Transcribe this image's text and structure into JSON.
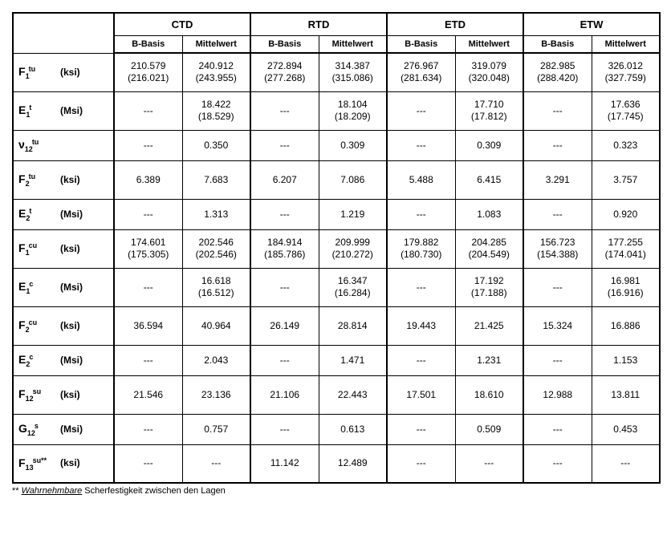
{
  "columns": {
    "groups": [
      "CTD",
      "RTD",
      "ETD",
      "ETW"
    ],
    "subs": [
      "B-Basis",
      "Mittelwert"
    ]
  },
  "rows": [
    {
      "base": "F",
      "sub": "1",
      "sup": "tu",
      "unit": "(ksi)",
      "vals": [
        {
          "v": "210.579",
          "p": "(216.021)"
        },
        {
          "v": "240.912",
          "p": "(243.955)"
        },
        {
          "v": "272.894",
          "p": "(277.268)"
        },
        {
          "v": "314.387",
          "p": "(315.086)"
        },
        {
          "v": "276.967",
          "p": "(281.634)"
        },
        {
          "v": "319.079",
          "p": "(320.048)"
        },
        {
          "v": "282.985",
          "p": "(288.420)"
        },
        {
          "v": "326.012",
          "p": "(327.759)"
        }
      ]
    },
    {
      "base": "E",
      "sub": "1",
      "sup": "t",
      "unit": "(Msi)",
      "vals": [
        {
          "v": "---"
        },
        {
          "v": "18.422",
          "p": "(18.529)"
        },
        {
          "v": "---"
        },
        {
          "v": "18.104",
          "p": "(18.209)"
        },
        {
          "v": "---"
        },
        {
          "v": "17.710",
          "p": "(17.812)"
        },
        {
          "v": "---"
        },
        {
          "v": "17.636",
          "p": "(17.745)"
        }
      ]
    },
    {
      "base": "ν",
      "sub": "12",
      "sup": "tu",
      "unit": "",
      "short": true,
      "vals": [
        {
          "v": "---"
        },
        {
          "v": "0.350"
        },
        {
          "v": "---"
        },
        {
          "v": "0.309"
        },
        {
          "v": "---"
        },
        {
          "v": "0.309"
        },
        {
          "v": "---"
        },
        {
          "v": "0.323"
        }
      ]
    },
    {
      "base": "F",
      "sub": "2",
      "sup": "tu",
      "unit": "(ksi)",
      "vals": [
        {
          "v": "6.389"
        },
        {
          "v": "7.683"
        },
        {
          "v": "6.207"
        },
        {
          "v": "7.086"
        },
        {
          "v": "5.488"
        },
        {
          "v": "6.415"
        },
        {
          "v": "3.291"
        },
        {
          "v": "3.757"
        }
      ]
    },
    {
      "base": "E",
      "sub": "2",
      "sup": "t",
      "unit": "(Msi)",
      "short": true,
      "vals": [
        {
          "v": "---"
        },
        {
          "v": "1.313"
        },
        {
          "v": "---"
        },
        {
          "v": "1.219"
        },
        {
          "v": "---"
        },
        {
          "v": "1.083"
        },
        {
          "v": "---"
        },
        {
          "v": "0.920"
        }
      ]
    },
    {
      "base": "F",
      "sub": "1",
      "sup": "cu",
      "unit": "(ksi)",
      "vals": [
        {
          "v": "174.601",
          "p": "(175.305)"
        },
        {
          "v": "202.546",
          "p": "(202.546)"
        },
        {
          "v": "184.914",
          "p": "(185.786)"
        },
        {
          "v": "209.999",
          "p": "(210.272)"
        },
        {
          "v": "179.882",
          "p": "(180.730)"
        },
        {
          "v": "204.285",
          "p": "(204.549)"
        },
        {
          "v": "156.723",
          "p": "(154.388)"
        },
        {
          "v": "177.255",
          "p": "(174.041)"
        }
      ]
    },
    {
      "base": "E",
      "sub": "1",
      "sup": "c",
      "unit": "(Msi)",
      "vals": [
        {
          "v": "---"
        },
        {
          "v": "16.618",
          "p": "(16.512)"
        },
        {
          "v": "---"
        },
        {
          "v": "16.347",
          "p": "(16.284)"
        },
        {
          "v": "---"
        },
        {
          "v": "17.192",
          "p": "(17.188)"
        },
        {
          "v": "---"
        },
        {
          "v": "16.981",
          "p": "(16.916)"
        }
      ]
    },
    {
      "base": "F",
      "sub": "2",
      "sup": "cu",
      "unit": "(ksi)",
      "vals": [
        {
          "v": "36.594"
        },
        {
          "v": "40.964"
        },
        {
          "v": "26.149"
        },
        {
          "v": "28.814"
        },
        {
          "v": "19.443"
        },
        {
          "v": "21.425"
        },
        {
          "v": "15.324"
        },
        {
          "v": "16.886"
        }
      ]
    },
    {
      "base": "E",
      "sub": "2",
      "sup": "c",
      "unit": "(Msi)",
      "short": true,
      "vals": [
        {
          "v": "---"
        },
        {
          "v": "2.043"
        },
        {
          "v": "---"
        },
        {
          "v": "1.471"
        },
        {
          "v": "---"
        },
        {
          "v": "1.231"
        },
        {
          "v": "---"
        },
        {
          "v": "1.153"
        }
      ]
    },
    {
      "base": "F",
      "sub": "12",
      "sup": "su",
      "unit": "(ksi)",
      "vals": [
        {
          "v": "21.546"
        },
        {
          "v": "23.136"
        },
        {
          "v": "21.106"
        },
        {
          "v": "22.443"
        },
        {
          "v": "17.501"
        },
        {
          "v": "18.610"
        },
        {
          "v": "12.988"
        },
        {
          "v": "13.811"
        }
      ]
    },
    {
      "base": "G",
      "sub": "12",
      "sup": "s",
      "unit": "(Msi)",
      "short": true,
      "vals": [
        {
          "v": "---"
        },
        {
          "v": "0.757"
        },
        {
          "v": "---"
        },
        {
          "v": "0.613"
        },
        {
          "v": "---"
        },
        {
          "v": "0.509"
        },
        {
          "v": "---"
        },
        {
          "v": "0.453"
        }
      ]
    },
    {
      "base": "F",
      "sub": "13",
      "sup": "su**",
      "unit": "(ksi)",
      "vals": [
        {
          "v": "---"
        },
        {
          "v": "---"
        },
        {
          "v": "11.142"
        },
        {
          "v": "12.489"
        },
        {
          "v": "---"
        },
        {
          "v": "---"
        },
        {
          "v": "---"
        },
        {
          "v": "---"
        }
      ]
    }
  ],
  "footnote": {
    "prefix": "** ",
    "uline": "Wahrnehmbare",
    "rest": " Scherfestigkeit zwischen den Lagen"
  }
}
